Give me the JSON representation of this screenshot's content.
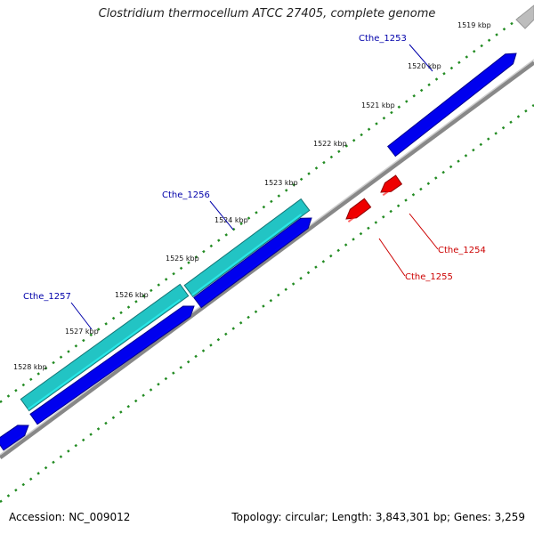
{
  "title": "Clostridium thermocellum ATCC 27405, complete genome",
  "footer": {
    "accession": "Accession: NC_009012",
    "summary": "Topology: circular; Length: 3,843,301 bp; Genes: 3,259"
  },
  "ticks": [
    {
      "label": "1519 kbp"
    },
    {
      "label": "1520 kbp"
    },
    {
      "label": "1521 kbp"
    },
    {
      "label": "1522 kbp"
    },
    {
      "label": "1523 kbp"
    },
    {
      "label": "1524 kbp"
    },
    {
      "label": "1525 kbp"
    },
    {
      "label": "1526 kbp"
    },
    {
      "label": "1527 kbp"
    },
    {
      "label": "1528 kbp"
    }
  ],
  "genes": [
    {
      "name": "Cthe_1253",
      "strand": "+",
      "color": "#0000ee"
    },
    {
      "name": "Cthe_1256",
      "strand": "+",
      "color": "#22c4c4"
    },
    {
      "name": "Cthe_1257",
      "strand": "+",
      "color": "#22c4c4"
    },
    {
      "name": "Cthe_1254",
      "strand": "-",
      "color": "#ee0000"
    },
    {
      "name": "Cthe_1255",
      "strand": "-",
      "color": "#ee0000"
    }
  ],
  "colors": {
    "backbone": "#8a8a8a",
    "tick": "#228b22",
    "cds": "#0000ee",
    "gene_label_forward": "#0000aa",
    "gene_label_reverse": "#cc0000"
  }
}
